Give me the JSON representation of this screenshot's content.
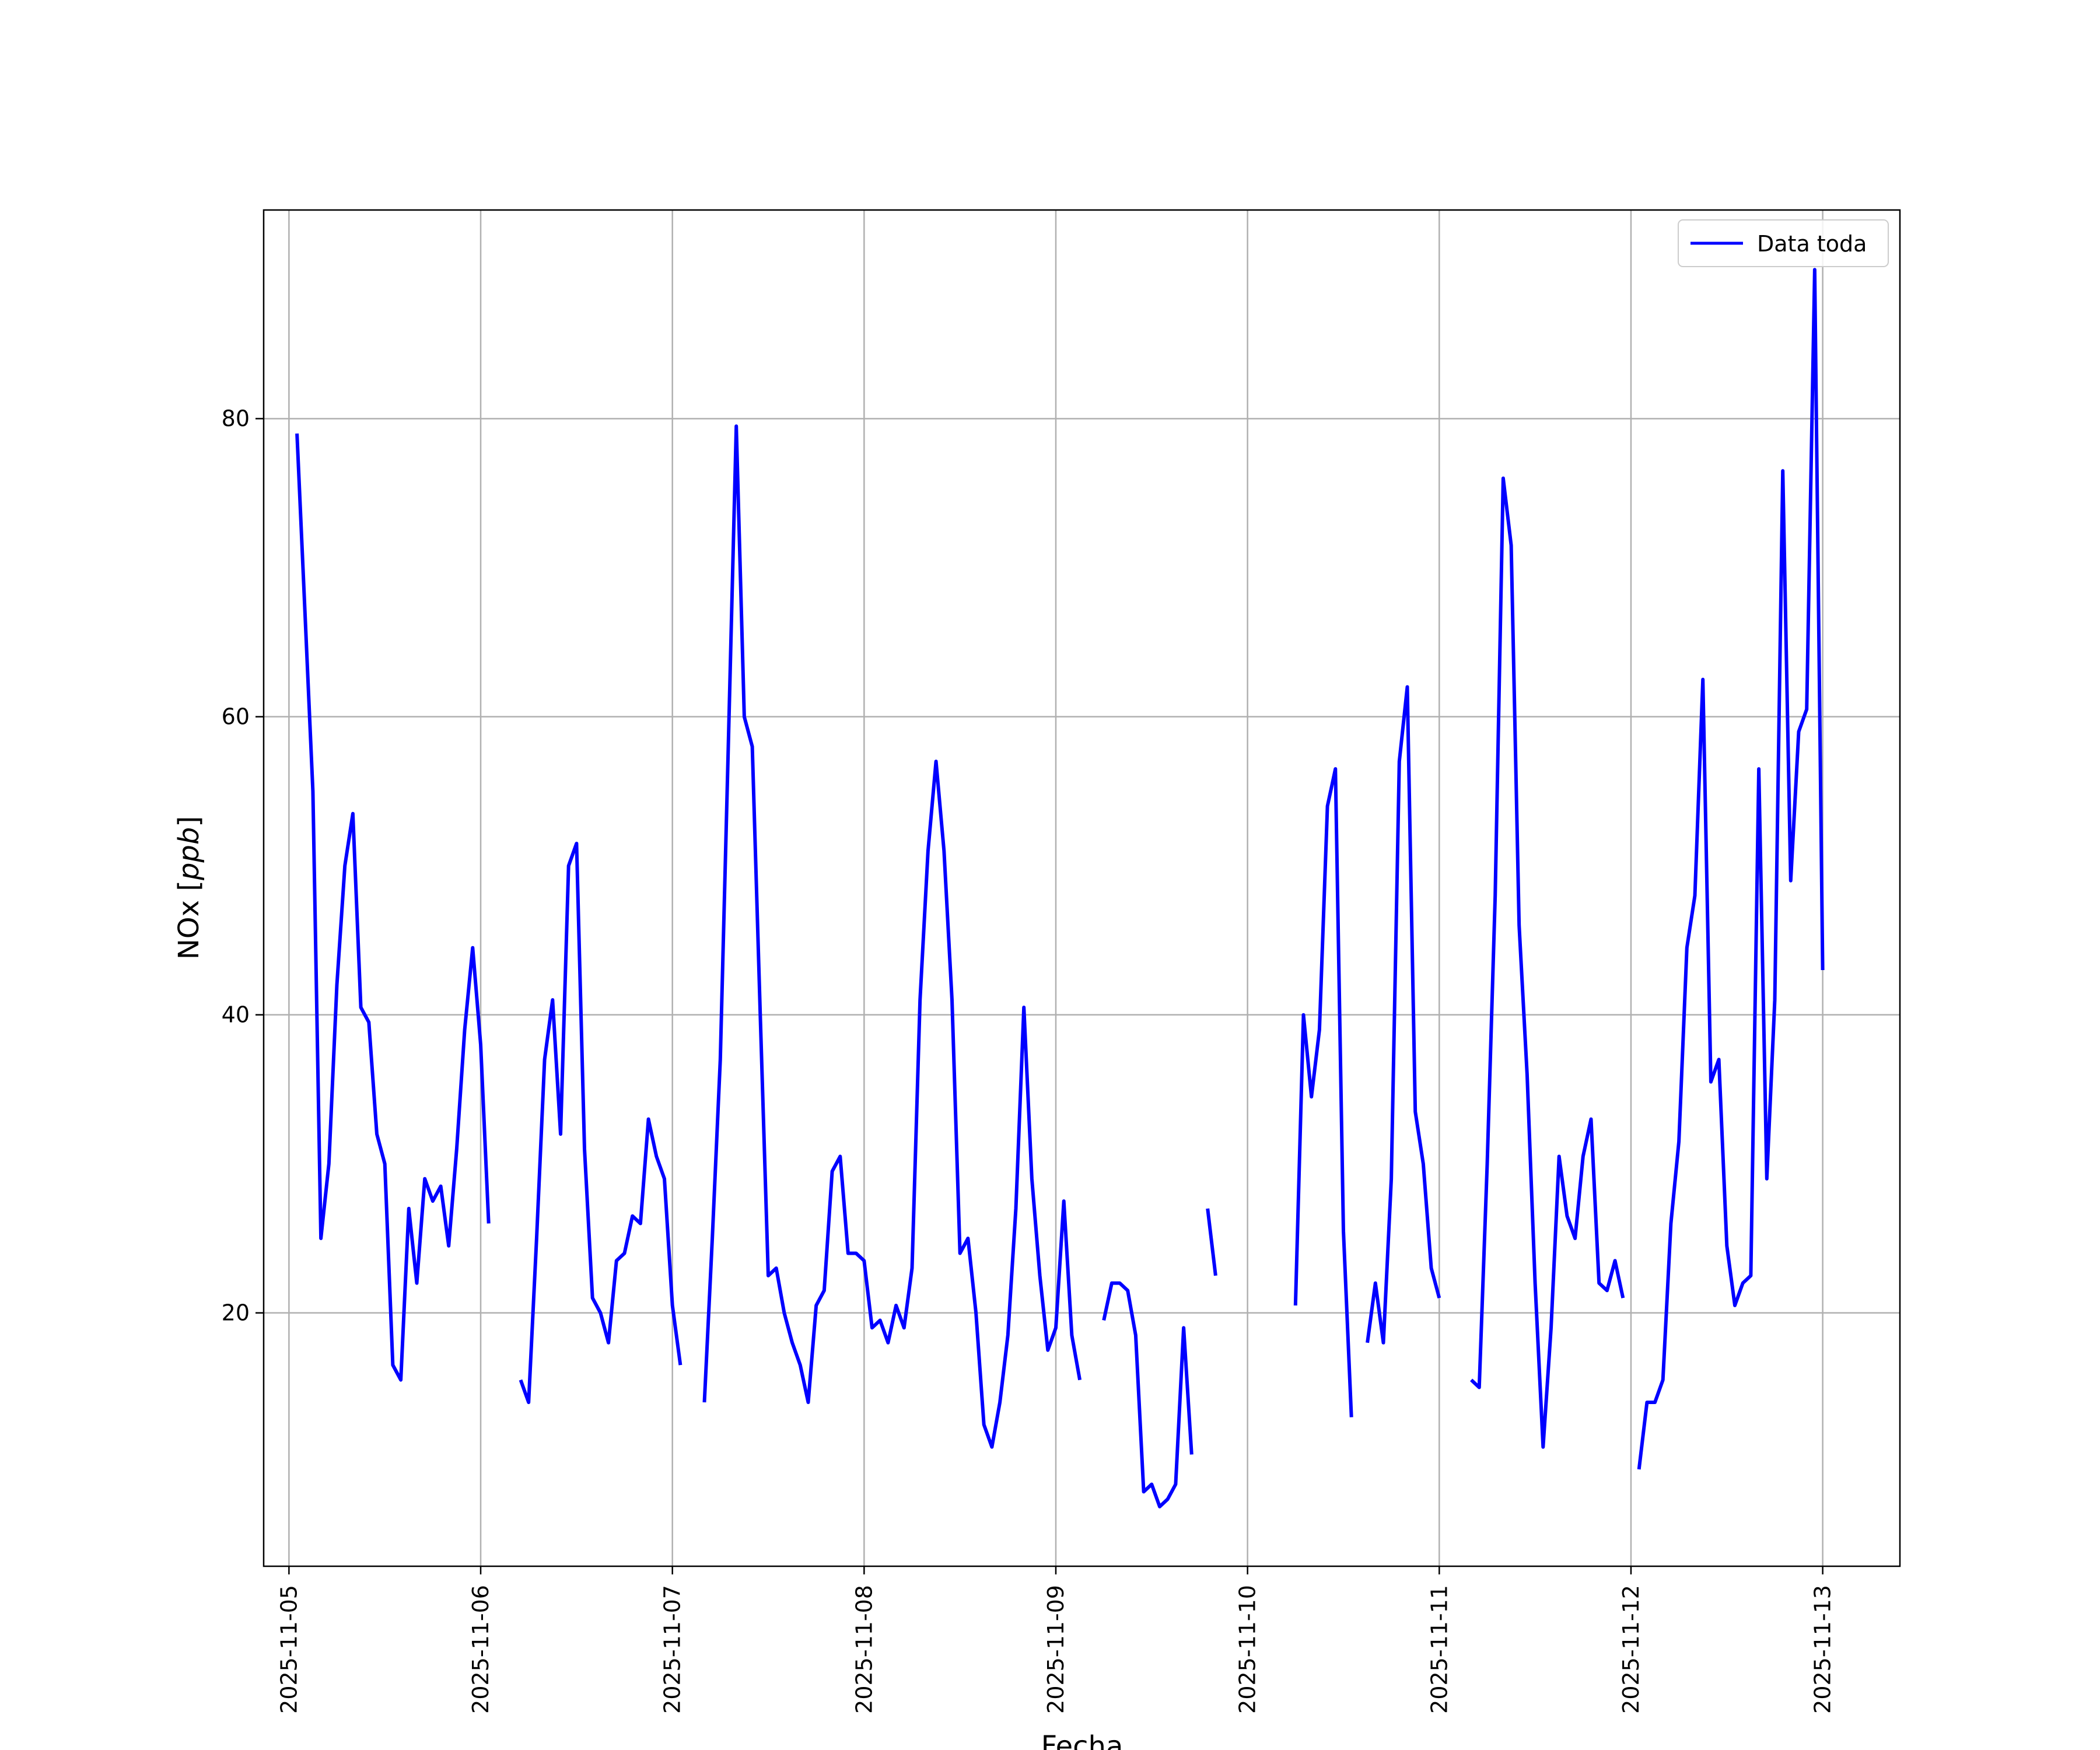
{
  "chart_data": {
    "type": "line",
    "xlabel": "Fecha",
    "ylabel": "NOx [ppb]",
    "ylabel_parts": {
      "main": "NOx [",
      "italic": "ppb",
      "end": "]"
    },
    "xlim": [
      "2025-11-04T20:50",
      "2025-11-13T09:40"
    ],
    "ylim": [
      3,
      94
    ],
    "xticks": [
      "2025-11-05",
      "2025-11-06",
      "2025-11-07",
      "2025-11-08",
      "2025-11-09",
      "2025-11-10",
      "2025-11-11",
      "2025-11-12",
      "2025-11-13"
    ],
    "yticks": [
      20,
      40,
      60,
      80
    ],
    "grid": true,
    "legend_position": "upper right",
    "series": [
      {
        "name": "Data toda",
        "color": "#0000ff",
        "points": [
          [
            "2025-11-05T01:00",
            79
          ],
          [
            "2025-11-05T02:00",
            67
          ],
          [
            "2025-11-05T03:00",
            55
          ],
          [
            "2025-11-05T04:00",
            25
          ],
          [
            "2025-11-05T05:00",
            30
          ],
          [
            "2025-11-05T06:00",
            42
          ],
          [
            "2025-11-05T07:00",
            50
          ],
          [
            "2025-11-05T08:00",
            53.5
          ],
          [
            "2025-11-05T09:00",
            40.5
          ],
          [
            "2025-11-05T10:00",
            39.5
          ],
          [
            "2025-11-05T11:00",
            32
          ],
          [
            "2025-11-05T12:00",
            30
          ],
          [
            "2025-11-05T13:00",
            16.5
          ],
          [
            "2025-11-05T14:00",
            15.5
          ],
          [
            "2025-11-05T15:00",
            27
          ],
          [
            "2025-11-05T16:00",
            22
          ],
          [
            "2025-11-05T17:00",
            29
          ],
          [
            "2025-11-05T18:00",
            27.5
          ],
          [
            "2025-11-05T19:00",
            28.5
          ],
          [
            "2025-11-05T20:00",
            24.5
          ],
          [
            "2025-11-05T21:00",
            31
          ],
          [
            "2025-11-05T22:00",
            39
          ],
          [
            "2025-11-05T23:00",
            44.5
          ],
          [
            "2025-11-06T00:00",
            38
          ],
          [
            "2025-11-06T01:00",
            26
          ],
          null,
          [
            "2025-11-06T05:00",
            15.5
          ],
          [
            "2025-11-06T06:00",
            14
          ],
          [
            "2025-11-06T07:00",
            25
          ],
          [
            "2025-11-06T08:00",
            37
          ],
          [
            "2025-11-06T09:00",
            41
          ],
          [
            "2025-11-06T10:00",
            32
          ],
          [
            "2025-11-06T11:00",
            50
          ],
          [
            "2025-11-06T12:00",
            51.5
          ],
          [
            "2025-11-06T13:00",
            31
          ],
          [
            "2025-11-06T14:00",
            21
          ],
          [
            "2025-11-06T15:00",
            20
          ],
          [
            "2025-11-06T16:00",
            18
          ],
          [
            "2025-11-06T17:00",
            23.5
          ],
          [
            "2025-11-06T18:00",
            24
          ],
          [
            "2025-11-06T19:00",
            26.5
          ],
          [
            "2025-11-06T20:00",
            26
          ],
          [
            "2025-11-06T21:00",
            33
          ],
          [
            "2025-11-06T22:00",
            30.5
          ],
          [
            "2025-11-06T23:00",
            29
          ],
          [
            "2025-11-07T00:00",
            20.5
          ],
          [
            "2025-11-07T01:00",
            16.5
          ],
          null,
          [
            "2025-11-07T04:00",
            14
          ],
          [
            "2025-11-07T05:00",
            25
          ],
          [
            "2025-11-07T06:00",
            37
          ],
          [
            "2025-11-07T07:00",
            58
          ],
          [
            "2025-11-07T08:00",
            79.5
          ],
          [
            "2025-11-07T09:00",
            60
          ],
          [
            "2025-11-07T10:00",
            58
          ],
          [
            "2025-11-07T11:00",
            40
          ],
          [
            "2025-11-07T12:00",
            22.5
          ],
          [
            "2025-11-07T13:00",
            23
          ],
          [
            "2025-11-07T14:00",
            20
          ],
          [
            "2025-11-07T15:00",
            18
          ],
          [
            "2025-11-07T16:00",
            16.5
          ],
          [
            "2025-11-07T17:00",
            14
          ],
          [
            "2025-11-07T18:00",
            20.5
          ],
          [
            "2025-11-07T19:00",
            21.5
          ],
          [
            "2025-11-07T20:00",
            29.5
          ],
          [
            "2025-11-07T21:00",
            30.5
          ],
          [
            "2025-11-07T22:00",
            24
          ],
          [
            "2025-11-07T23:00",
            24
          ],
          [
            "2025-11-08T00:00",
            23.5
          ],
          [
            "2025-11-08T01:00",
            19
          ],
          [
            "2025-11-08T02:00",
            19.5
          ],
          [
            "2025-11-08T03:00",
            18
          ],
          [
            "2025-11-08T04:00",
            20.5
          ],
          [
            "2025-11-08T05:00",
            19
          ],
          [
            "2025-11-08T06:00",
            23
          ],
          [
            "2025-11-08T07:00",
            41
          ],
          [
            "2025-11-08T08:00",
            51
          ],
          [
            "2025-11-08T09:00",
            57
          ],
          [
            "2025-11-08T10:00",
            51
          ],
          [
            "2025-11-08T11:00",
            41
          ],
          [
            "2025-11-08T12:00",
            24
          ],
          [
            "2025-11-08T13:00",
            25
          ],
          [
            "2025-11-08T14:00",
            20
          ],
          [
            "2025-11-08T15:00",
            12.5
          ],
          [
            "2025-11-08T16:00",
            11
          ],
          [
            "2025-11-08T17:00",
            14
          ],
          [
            "2025-11-08T18:00",
            18.5
          ],
          [
            "2025-11-08T19:00",
            27
          ],
          [
            "2025-11-08T20:00",
            40.5
          ],
          [
            "2025-11-08T21:00",
            29
          ],
          [
            "2025-11-08T22:00",
            22.5
          ],
          [
            "2025-11-08T23:00",
            17.5
          ],
          [
            "2025-11-09T00:00",
            19
          ],
          [
            "2025-11-09T01:00",
            27.5
          ],
          [
            "2025-11-09T02:00",
            18.5
          ],
          [
            "2025-11-09T03:00",
            15.5
          ],
          null,
          [
            "2025-11-09T06:00",
            19.5
          ],
          [
            "2025-11-09T07:00",
            22
          ],
          [
            "2025-11-09T08:00",
            22
          ],
          [
            "2025-11-09T09:00",
            21.5
          ],
          [
            "2025-11-09T10:00",
            18.5
          ],
          [
            "2025-11-09T11:00",
            8
          ],
          [
            "2025-11-09T12:00",
            8.5
          ],
          [
            "2025-11-09T13:00",
            7
          ],
          [
            "2025-11-09T14:00",
            7.5
          ],
          [
            "2025-11-09T15:00",
            8.5
          ],
          [
            "2025-11-09T16:00",
            19
          ],
          [
            "2025-11-09T17:00",
            10.5
          ],
          null,
          [
            "2025-11-09T19:00",
            27
          ],
          [
            "2025-11-09T20:00",
            22.5
          ],
          null,
          [
            "2025-11-10T06:00",
            20.5
          ],
          [
            "2025-11-10T07:00",
            40
          ],
          [
            "2025-11-10T08:00",
            34.5
          ],
          [
            "2025-11-10T09:00",
            39
          ],
          [
            "2025-11-10T10:00",
            54
          ],
          [
            "2025-11-10T11:00",
            56.5
          ],
          [
            "2025-11-10T12:00",
            25.5
          ],
          [
            "2025-11-10T13:00",
            13
          ],
          null,
          [
            "2025-11-10T15:00",
            18
          ],
          [
            "2025-11-10T16:00",
            22
          ],
          [
            "2025-11-10T17:00",
            18
          ],
          [
            "2025-11-10T18:00",
            29
          ],
          [
            "2025-11-10T19:00",
            57
          ],
          [
            "2025-11-10T20:00",
            62
          ],
          [
            "2025-11-10T21:00",
            33.5
          ],
          [
            "2025-11-10T22:00",
            30
          ],
          [
            "2025-11-10T23:00",
            23
          ],
          [
            "2025-11-11T00:00",
            21
          ],
          null,
          [
            "2025-11-11T04:00",
            15.5
          ],
          [
            "2025-11-11T05:00",
            15
          ],
          [
            "2025-11-11T06:00",
            30
          ],
          [
            "2025-11-11T07:00",
            48
          ],
          [
            "2025-11-11T08:00",
            76
          ],
          [
            "2025-11-11T09:00",
            71.5
          ],
          [
            "2025-11-11T10:00",
            46
          ],
          [
            "2025-11-11T11:00",
            36
          ],
          [
            "2025-11-11T12:00",
            22
          ],
          [
            "2025-11-11T13:00",
            11
          ],
          [
            "2025-11-11T14:00",
            19
          ],
          [
            "2025-11-11T15:00",
            30.5
          ],
          [
            "2025-11-11T16:00",
            26.5
          ],
          [
            "2025-11-11T17:00",
            25
          ],
          [
            "2025-11-11T18:00",
            30.5
          ],
          [
            "2025-11-11T19:00",
            33
          ],
          [
            "2025-11-11T20:00",
            22
          ],
          [
            "2025-11-11T21:00",
            21.5
          ],
          [
            "2025-11-11T22:00",
            23.5
          ],
          [
            "2025-11-11T23:00",
            21
          ],
          null,
          [
            "2025-11-12T01:00",
            9.5
          ],
          [
            "2025-11-12T02:00",
            14
          ],
          [
            "2025-11-12T03:00",
            14
          ],
          [
            "2025-11-12T04:00",
            15.5
          ],
          [
            "2025-11-12T05:00",
            26
          ],
          [
            "2025-11-12T06:00",
            31.5
          ],
          [
            "2025-11-12T07:00",
            44.5
          ],
          [
            "2025-11-12T08:00",
            48
          ],
          [
            "2025-11-12T09:00",
            62.5
          ],
          [
            "2025-11-12T10:00",
            35.5
          ],
          [
            "2025-11-12T11:00",
            37
          ],
          [
            "2025-11-12T12:00",
            24.5
          ],
          [
            "2025-11-12T13:00",
            20.5
          ],
          [
            "2025-11-12T14:00",
            22
          ],
          [
            "2025-11-12T15:00",
            22.5
          ],
          [
            "2025-11-12T16:00",
            56.5
          ],
          [
            "2025-11-12T17:00",
            29
          ],
          [
            "2025-11-12T18:00",
            41
          ],
          [
            "2025-11-12T19:00",
            76.5
          ],
          [
            "2025-11-12T20:00",
            49
          ],
          [
            "2025-11-12T21:00",
            59
          ],
          [
            "2025-11-12T22:00",
            60.5
          ],
          [
            "2025-11-12T23:00",
            90
          ],
          [
            "2025-11-13T00:00",
            43
          ]
        ]
      }
    ]
  }
}
